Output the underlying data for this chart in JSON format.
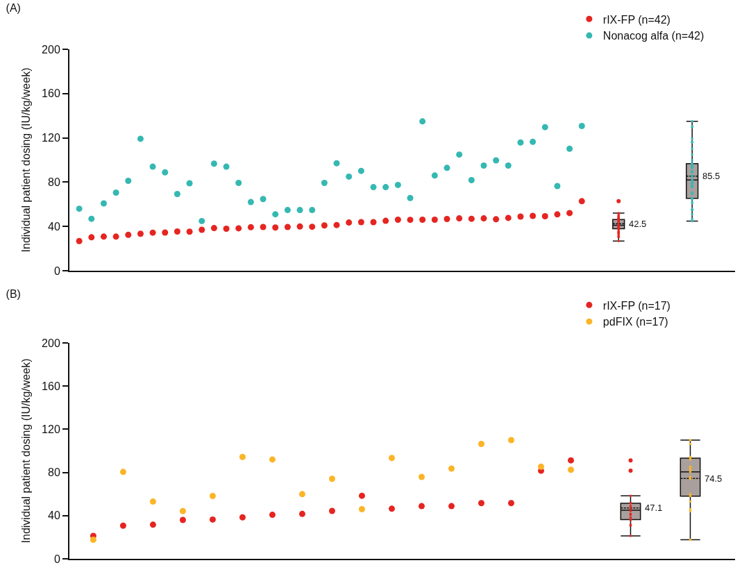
{
  "chart_data": [
    {
      "type": "scatter",
      "title": "(A)",
      "ylabel": "Individual patient dosing (IU/kg/week)",
      "ylim": [
        0,
        200
      ],
      "yticks": [
        0,
        40,
        80,
        120,
        160,
        200
      ],
      "grid": false,
      "legend": "top right",
      "marker": "circle",
      "tick_labels": "y",
      "categories": [
        null,
        null,
        null,
        null,
        null,
        null,
        null,
        null,
        null,
        null,
        null,
        null,
        null,
        null,
        null,
        null,
        null,
        null,
        null,
        null,
        null,
        null,
        null,
        null,
        null,
        null,
        null,
        null,
        null,
        null,
        null,
        null,
        null,
        null,
        null,
        null,
        null,
        null,
        null,
        null,
        null,
        null,
        null,
        null,
        null,
        null,
        null,
        null,
        null,
        null,
        null,
        null,
        null,
        null
      ],
      "series": [
        {
          "name": "rIX-FP (n=42)",
          "color": "#e52521",
          "values": [
            26.8,
            30.2,
            30.8,
            30.8,
            32.4,
            33.4,
            34.4,
            34.5,
            35.4,
            35.3,
            37,
            38.5,
            37.9,
            38.3,
            39.3,
            39.5,
            39,
            39.5,
            40,
            39.7,
            40.9,
            41.3,
            43.5,
            43.9,
            43.9,
            45.1,
            46.1,
            46,
            46.1,
            46.1,
            46.7,
            47.3,
            46.9,
            47.3,
            46.5,
            47.7,
            48.9,
            49.5,
            49.2,
            50.9,
            52.1,
            62.8,
            null,
            null,
            null,
            null,
            null,
            null,
            null,
            null,
            null,
            null,
            null,
            null
          ]
        },
        {
          "name": "Nonacog alfa (n=42)",
          "color": "#35b8b2",
          "values": [
            56,
            46.9,
            60.8,
            70.5,
            81.2,
            119.2,
            94,
            88.8,
            69.3,
            79,
            44.9,
            96.7,
            94,
            79.3,
            62,
            64.7,
            51,
            54.8,
            54.8,
            54.8,
            79.3,
            97.1,
            85,
            90.2,
            75.5,
            75.5,
            77.5,
            65.7,
            134.9,
            86,
            92.9,
            104.9,
            81.8,
            95,
            99.7,
            95,
            115.8,
            116.4,
            129.7,
            76.5,
            110.2,
            130.7,
            null,
            null,
            null,
            null,
            null,
            null,
            null,
            null,
            null,
            null,
            null,
            null
          ]
        },
        {
          "type": "box",
          "color": "#a9a09e",
          "boxes": [
            null,
            null,
            null,
            null,
            null,
            null,
            null,
            null,
            null,
            null,
            null,
            null,
            null,
            null,
            null,
            null,
            null,
            null,
            null,
            null,
            null,
            null,
            null,
            null,
            null,
            null,
            null,
            null,
            null,
            null,
            null,
            null,
            null,
            null,
            null,
            null,
            null,
            null,
            null,
            null,
            null,
            null,
            null,
            null,
            {
              "low": 26.8,
              "q1": 37.9,
              "median": 41,
              "q3": 46.3,
              "high": 52.1,
              "mean": 42.5,
              "outliers": [
                62.8
              ]
            },
            null,
            null,
            null,
            null,
            null,
            null,
            null,
            null,
            null
          ]
        },
        {
          "type": "box",
          "color": "#a9a09e",
          "boxes": [
            null,
            null,
            null,
            null,
            null,
            null,
            null,
            null,
            null,
            null,
            null,
            null,
            null,
            null,
            null,
            null,
            null,
            null,
            null,
            null,
            null,
            null,
            null,
            null,
            null,
            null,
            null,
            null,
            null,
            null,
            null,
            null,
            null,
            null,
            null,
            null,
            null,
            null,
            null,
            null,
            null,
            null,
            null,
            null,
            null,
            null,
            null,
            null,
            null,
            null,
            {
              "low": 44.9,
              "q1": 65.4,
              "median": 82,
              "q3": 96.7,
              "high": 134.9,
              "mean": 85.5
            },
            null,
            null,
            null
          ]
        }
      ],
      "annotations": [
        "42.5",
        "85.5"
      ]
    },
    {
      "type": "scatter",
      "title": "(B)",
      "ylabel": "Individual patient dosing (IU/kg/week)",
      "ylim": [
        0,
        200
      ],
      "yticks": [
        0,
        40,
        80,
        120,
        160,
        200
      ],
      "grid": false,
      "legend": "top right",
      "marker": "circle",
      "tick_labels": "y",
      "categories": [
        null,
        null,
        null,
        null,
        null,
        null,
        null,
        null,
        null,
        null,
        null,
        null,
        null,
        null,
        null,
        null,
        null,
        null,
        null,
        null,
        null,
        null
      ],
      "series": [
        {
          "name": "rIX-FP (n=17)",
          "color": "#e52521",
          "values": [
            21.3,
            30.7,
            31.6,
            36,
            36.4,
            38.4,
            40.8,
            41.6,
            44.4,
            58.4,
            46.4,
            48.8,
            48.8,
            51.6,
            51.6,
            81.6,
            91.2,
            null,
            null,
            null,
            null,
            null
          ]
        },
        {
          "name": "pdFIX (n=17)",
          "color": "#fbb527",
          "values": [
            17.7,
            80.5,
            53,
            44.2,
            58.2,
            94.4,
            92,
            59.9,
            74.1,
            46,
            93.4,
            75.9,
            83.6,
            106.4,
            110,
            85.4,
            82.5,
            null,
            null,
            null,
            null,
            null
          ]
        },
        {
          "type": "box",
          "color": "#a9a09e",
          "boxes": [
            null,
            null,
            null,
            null,
            null,
            null,
            null,
            null,
            null,
            null,
            null,
            null,
            null,
            null,
            null,
            null,
            null,
            null,
            {
              "low": 21.3,
              "q1": 36.4,
              "median": 45,
              "q3": 51.4,
              "high": 58.4,
              "mean": 47.1,
              "outliers": [
                81.6,
                91.2
              ]
            },
            null,
            null,
            null
          ]
        },
        {
          "type": "box",
          "color": "#a9a09e",
          "boxes": [
            null,
            null,
            null,
            null,
            null,
            null,
            null,
            null,
            null,
            null,
            null,
            null,
            null,
            null,
            null,
            null,
            null,
            null,
            null,
            null,
            {
              "low": 17.7,
              "q1": 58,
              "median": 80.5,
              "q3": 93.2,
              "high": 110,
              "mean": 74.5
            },
            null
          ]
        }
      ],
      "annotations": [
        "47.1",
        "74.5"
      ]
    }
  ]
}
